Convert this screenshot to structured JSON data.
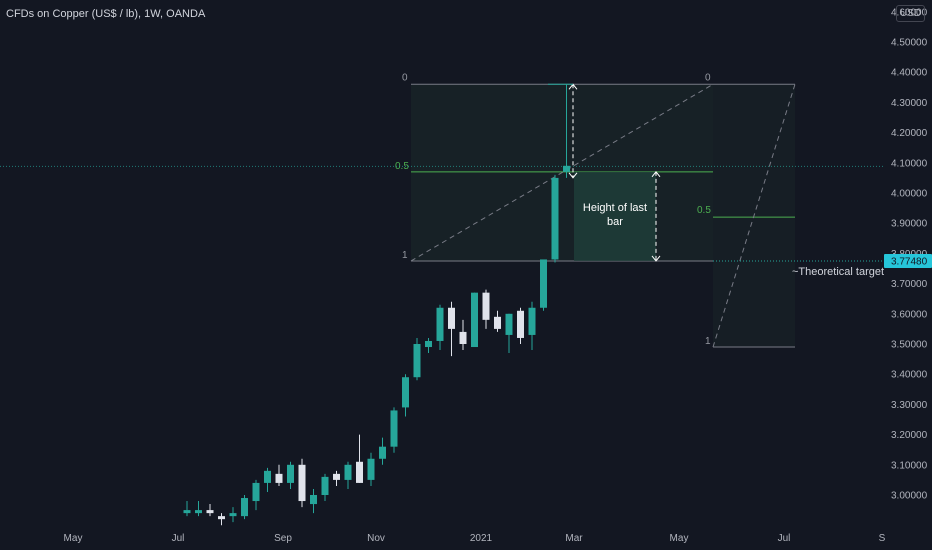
{
  "header": {
    "symbol_title": "CFDs on Copper (US$ / lb), 1W, OANDA",
    "currency": "USD"
  },
  "chart_data": {
    "type": "candlestick",
    "x_ticks": [
      "May",
      "Jul",
      "Sep",
      "Nov",
      "2021",
      "Mar",
      "May",
      "Jul",
      "S"
    ],
    "y_ticks": [
      "3.00000",
      "3.10000",
      "3.20000",
      "3.30000",
      "3.40000",
      "3.50000",
      "3.60000",
      "3.70000",
      "3.80000",
      "3.90000",
      "4.00000",
      "4.10000",
      "4.20000",
      "4.30000",
      "4.40000",
      "4.50000",
      "4.60000"
    ],
    "ylim": [
      2.9,
      4.65
    ],
    "current_price_label": "3.77480",
    "current_price": 3.7748,
    "last_price_line": 4.088,
    "colors": {
      "up": "#26a69a",
      "down": "#e0e3eb",
      "fib": "#4caf50",
      "annot": "#ffffff"
    },
    "candles": [
      {
        "o": 2.94,
        "h": 2.98,
        "l": 2.93,
        "c": 2.95
      },
      {
        "o": 2.94,
        "h": 2.98,
        "l": 2.93,
        "c": 2.95
      },
      {
        "o": 2.95,
        "h": 2.97,
        "l": 2.93,
        "c": 2.94
      },
      {
        "o": 2.93,
        "h": 2.94,
        "l": 2.9,
        "c": 2.92
      },
      {
        "o": 2.93,
        "h": 2.96,
        "l": 2.91,
        "c": 2.94
      },
      {
        "o": 2.93,
        "h": 3.0,
        "l": 2.92,
        "c": 2.99
      },
      {
        "o": 2.98,
        "h": 3.05,
        "l": 2.95,
        "c": 3.04
      },
      {
        "o": 3.04,
        "h": 3.09,
        "l": 3.01,
        "c": 3.08
      },
      {
        "o": 3.07,
        "h": 3.1,
        "l": 3.03,
        "c": 3.04
      },
      {
        "o": 3.04,
        "h": 3.11,
        "l": 3.02,
        "c": 3.1
      },
      {
        "o": 3.1,
        "h": 3.12,
        "l": 2.96,
        "c": 2.98
      },
      {
        "o": 2.97,
        "h": 3.02,
        "l": 2.94,
        "c": 3.0
      },
      {
        "o": 3.0,
        "h": 3.07,
        "l": 2.98,
        "c": 3.06
      },
      {
        "o": 3.07,
        "h": 3.08,
        "l": 3.03,
        "c": 3.05
      },
      {
        "o": 3.05,
        "h": 3.11,
        "l": 3.02,
        "c": 3.1
      },
      {
        "o": 3.11,
        "h": 3.2,
        "l": 3.04,
        "c": 3.04
      },
      {
        "o": 3.05,
        "h": 3.14,
        "l": 3.03,
        "c": 3.12
      },
      {
        "o": 3.12,
        "h": 3.19,
        "l": 3.1,
        "c": 3.16
      },
      {
        "o": 3.16,
        "h": 3.29,
        "l": 3.14,
        "c": 3.28
      },
      {
        "o": 3.29,
        "h": 3.4,
        "l": 3.26,
        "c": 3.39
      },
      {
        "o": 3.39,
        "h": 3.52,
        "l": 3.38,
        "c": 3.5
      },
      {
        "o": 3.49,
        "h": 3.52,
        "l": 3.47,
        "c": 3.51
      },
      {
        "o": 3.51,
        "h": 3.63,
        "l": 3.48,
        "c": 3.62
      },
      {
        "o": 3.62,
        "h": 3.64,
        "l": 3.46,
        "c": 3.55
      },
      {
        "o": 3.54,
        "h": 3.58,
        "l": 3.48,
        "c": 3.5
      },
      {
        "o": 3.49,
        "h": 3.67,
        "l": 3.49,
        "c": 3.67
      },
      {
        "o": 3.67,
        "h": 3.68,
        "l": 3.55,
        "c": 3.58
      },
      {
        "o": 3.59,
        "h": 3.61,
        "l": 3.54,
        "c": 3.55
      },
      {
        "o": 3.53,
        "h": 3.6,
        "l": 3.47,
        "c": 3.6
      },
      {
        "o": 3.61,
        "h": 3.62,
        "l": 3.5,
        "c": 3.52
      },
      {
        "o": 3.53,
        "h": 3.64,
        "l": 3.48,
        "c": 3.62
      },
      {
        "o": 3.62,
        "h": 3.78,
        "l": 3.61,
        "c": 3.78
      },
      {
        "o": 3.78,
        "h": 4.06,
        "l": 3.77,
        "c": 4.05
      },
      {
        "o": 4.07,
        "h": 4.36,
        "l": 4.05,
        "c": 4.09
      }
    ],
    "fib_upper": {
      "level0": 4.36,
      "level05": 4.07,
      "level1": 3.775,
      "labels": [
        "0",
        "0.5",
        "1"
      ]
    },
    "fib_lower": {
      "level0": 4.36,
      "level05": 3.92,
      "level1": 3.49,
      "labels": [
        "0",
        "0.5",
        "1"
      ]
    },
    "annotation": "Height of last bar",
    "target_label": "~Theoretical target"
  }
}
